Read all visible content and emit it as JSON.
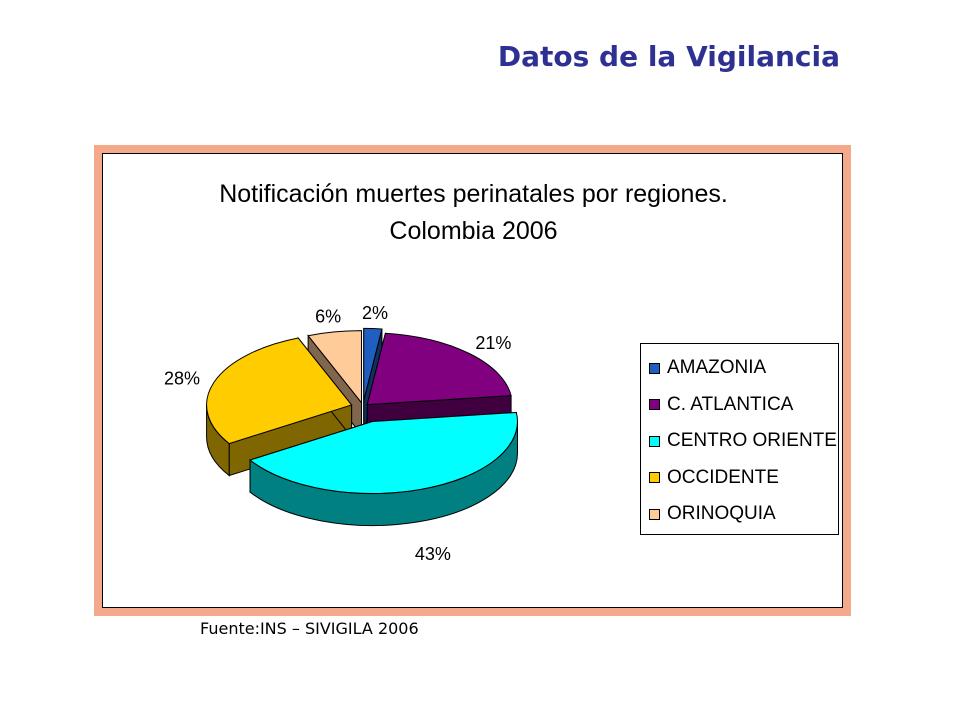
{
  "slide": {
    "title": "Datos de la Vigilancia",
    "source": "Fuente:INS – SIVIGILA 2006"
  },
  "chart_data": {
    "type": "pie",
    "title_line1": "Notificación muertes perinatales por regiones.",
    "title_line2": "Colombia 2006",
    "style": "3d-exploded",
    "legend_position": "right",
    "slices": [
      {
        "name": "AMAZONIA",
        "value": 2,
        "label": "2%",
        "color": "#1f5fbf"
      },
      {
        "name": "C. ATLANTICA",
        "value": 21,
        "label": "21%",
        "color": "#800080"
      },
      {
        "name": "CENTRO ORIENTE",
        "value": 43,
        "label": "43%",
        "color": "#00ffff"
      },
      {
        "name": "OCCIDENTE",
        "value": 28,
        "label": "28%",
        "color": "#ffcc00"
      },
      {
        "name": "ORINOQUIA",
        "value": 6,
        "label": "6%",
        "color": "#ffcc99"
      }
    ]
  }
}
